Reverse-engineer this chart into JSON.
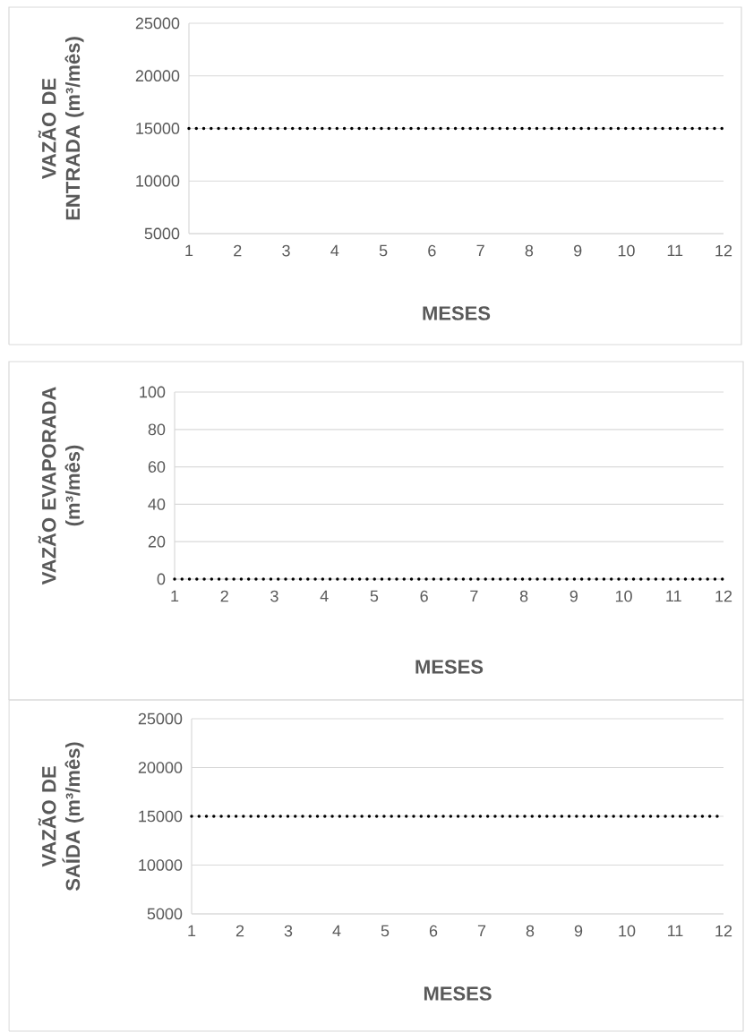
{
  "chart_data": [
    {
      "type": "line",
      "xlabel": "MESES",
      "ylabel": "VAZÃO DE ENTRADA (m³/mês)",
      "categories": [
        "1",
        "2",
        "3",
        "4",
        "5",
        "6",
        "7",
        "8",
        "9",
        "10",
        "11",
        "12"
      ],
      "values": [
        15000,
        15000,
        15000,
        15000,
        15000,
        15000,
        15000,
        15000,
        15000,
        15000,
        15000,
        15000
      ],
      "color": "#000000",
      "line_style": "dotted",
      "marker": "none",
      "grid": "y",
      "ylim": [
        5000,
        25000
      ],
      "yticks": [
        5000,
        10000,
        15000,
        20000,
        25000
      ]
    },
    {
      "type": "line",
      "xlabel": "MESES",
      "ylabel": "VAZÃO EVAPORADA (m³/mês)",
      "categories": [
        "1",
        "2",
        "3",
        "4",
        "5",
        "6",
        "7",
        "8",
        "9",
        "10",
        "11",
        "12"
      ],
      "values": [
        0,
        0,
        0,
        0,
        0,
        0,
        0,
        0,
        0,
        0,
        0,
        0
      ],
      "color": "#000000",
      "line_style": "dotted",
      "marker": "none",
      "grid": "y",
      "ylim": [
        0,
        100
      ],
      "yticks": [
        0,
        20,
        40,
        60,
        80,
        100
      ]
    },
    {
      "type": "line",
      "xlabel": "MESES",
      "ylabel": "VAZÃO DE SAÍDA (m³/mês)",
      "categories": [
        "1",
        "2",
        "3",
        "4",
        "5",
        "6",
        "7",
        "8",
        "9",
        "10",
        "11",
        "12"
      ],
      "values": [
        15000,
        15000,
        15000,
        15000,
        15000,
        15000,
        15000,
        15000,
        15000,
        15000,
        15000,
        15000
      ],
      "color": "#000000",
      "line_style": "dotted",
      "marker": "none",
      "grid": "y",
      "ylim": [
        5000,
        25000
      ],
      "yticks": [
        5000,
        10000,
        15000,
        20000,
        25000
      ]
    }
  ]
}
